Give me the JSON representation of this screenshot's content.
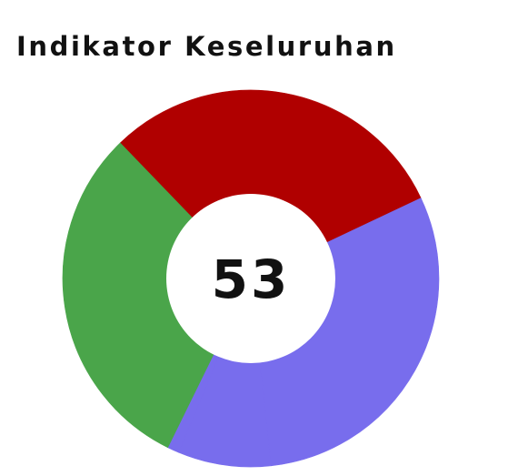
{
  "indicator": {
    "title": "Indikator Keseluruhan",
    "score": "53"
  },
  "chart_data": {
    "type": "pie",
    "variant": "donut",
    "title": "Indikator Keseluruhan",
    "center_label": "53",
    "slices": [
      {
        "value": 30.2,
        "color": "#b00000"
      },
      {
        "value": 30.3,
        "color": "#786ded"
      },
      {
        "value": 8.0,
        "color": "#786ded"
      },
      {
        "value": 1.0,
        "color": "#786ded"
      },
      {
        "value": 30.5,
        "color": "#4aa54a"
      }
    ]
  },
  "colors": {
    "red": "#b00000",
    "purple": "#786ded",
    "green": "#4aa54a",
    "text": "#111111",
    "background": "#ffffff"
  }
}
